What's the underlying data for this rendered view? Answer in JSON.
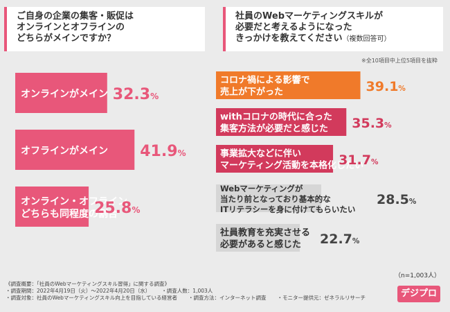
{
  "left_question": {
    "line1": "ご自身の企業の集客・販促は",
    "line2": "オンラインとオフラインの",
    "line3": "どちらがメインですか？"
  },
  "right_question": {
    "line1": "社員のWebマーケティングスキルが",
    "line2": "必要だと考えるようになった",
    "line3": "きっかけを教えてください",
    "line3_small": "（複数回答可）"
  },
  "note_top": "※全10項目中上位5項目を抜粋",
  "sample_size": "（n=1,003人）",
  "footer": {
    "overview": "《調査概要：「社員のWebマーケティングスキル習得」に関する調査》",
    "period": "・調査期間：2022年4月19日（火）〜2022年4月20日（水）",
    "count": "・調査人数：1,003人",
    "target": "・調査対象：社員のWebマーケティングスキル向上を目指している経営者",
    "method": "・調査方法：インターネット調査",
    "provider": "・モニター提供元：ゼネラルリサーチ"
  },
  "logo_text": "デジプロ",
  "colors": {
    "accent": "#e8577a",
    "orange": "#f07a2a",
    "magenta": "#d23a5c",
    "gray_bar": "#d6d6d6",
    "background": "#ebebeb"
  },
  "chart_data": [
    {
      "type": "bar",
      "orientation": "horizontal",
      "title": "ご自身の企業の集客・販促はオンラインとオフラインのどちらがメインですか？",
      "categories": [
        [
          "オンラインがメイン"
        ],
        [
          "オフラインがメイン"
        ],
        [
          "オンライン・オフライン",
          "どちらも同程度の割合"
        ]
      ],
      "values": [
        32.3,
        41.9,
        25.8
      ],
      "value_labels": [
        "32.3%",
        "41.9%",
        "25.8%"
      ],
      "unit": "%"
    },
    {
      "type": "bar",
      "orientation": "horizontal",
      "title": "社員のWebマーケティングスキルが必要だと考えるようになったきっかけを教えてください（複数回答可）",
      "categories": [
        [
          "コロナ禍による影響で",
          "売上が下がった"
        ],
        [
          "withコロナの時代に合った",
          "集客方法が必要だと感じた"
        ],
        [
          "事業拡大などに伴い",
          "マーケティング活動を本格化したい"
        ],
        [
          "Webマーケティングが",
          "当たり前となっており基本的な",
          "ITリテラシーを身に付けてもらいたい"
        ],
        [
          "社員教育を充実させる",
          "必要があると感じた"
        ]
      ],
      "values": [
        39.1,
        35.3,
        31.7,
        28.5,
        22.7
      ],
      "value_labels": [
        "39.1%",
        "35.3%",
        "31.7%",
        "28.5%",
        "22.7%"
      ],
      "unit": "%"
    }
  ]
}
